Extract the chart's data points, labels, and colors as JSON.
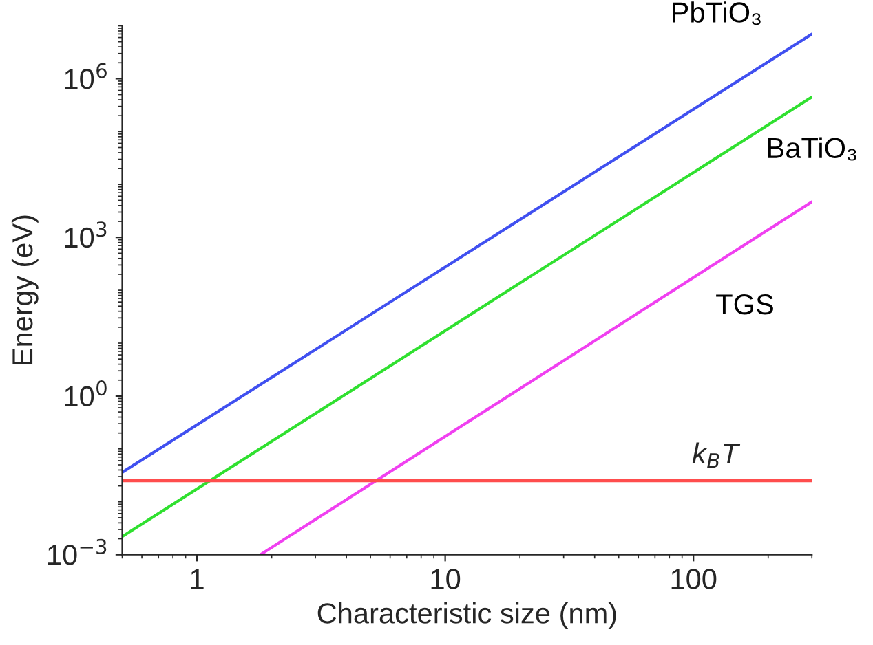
{
  "chart_data": {
    "type": "line",
    "xlabel": "Characteristic size (nm)",
    "ylabel": "Energy (eV)",
    "log": "xy",
    "grid": false,
    "legend": false,
    "marker": "none",
    "line_style": "solid",
    "xlim": [
      0.5,
      300
    ],
    "ylim": [
      0.001,
      10000000
    ],
    "xticks": [
      1,
      10,
      100
    ],
    "yticks": [
      {
        "value": 0.001,
        "label": "10$^{−3}$"
      },
      {
        "value": 1,
        "label": "10$^{0}$"
      },
      {
        "value": 1000,
        "label": "10$^{3}$"
      },
      {
        "value": 1000000,
        "label": "10$^{6}$"
      }
    ],
    "series": [
      {
        "name": "PbTiO₃",
        "color": "#4050f0",
        "x": [
          0.5,
          300
        ],
        "values": [
          0.036,
          7000000
        ]
      },
      {
        "name": "BaTiO₃",
        "color": "#30e030",
        "x": [
          0.5,
          300
        ],
        "values": [
          0.0022,
          450000
        ]
      },
      {
        "name": "TGS",
        "color": "#f040f0",
        "x": [
          1.8,
          300
        ],
        "values": [
          0.001,
          4700
        ]
      }
    ],
    "ref_lines": [
      {
        "axis": "y",
        "value": 0.025,
        "label": "k$_{B}$T",
        "color": "#ff4d4d"
      }
    ]
  }
}
